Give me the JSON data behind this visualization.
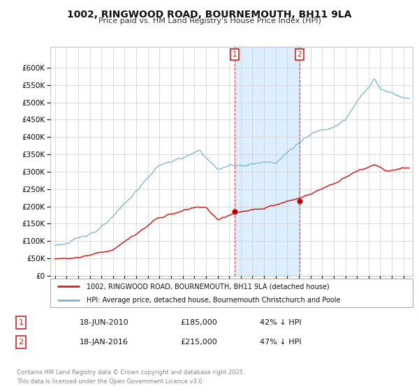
{
  "title_line1": "1002, RINGWOOD ROAD, BOURNEMOUTH, BH11 9LA",
  "title_line2": "Price paid vs. HM Land Registry's House Price Index (HPI)",
  "ylim": [
    0,
    660000
  ],
  "yticks": [
    0,
    50000,
    100000,
    150000,
    200000,
    250000,
    300000,
    350000,
    400000,
    450000,
    500000,
    550000,
    600000
  ],
  "ytick_labels": [
    "£0",
    "£50K",
    "£100K",
    "£150K",
    "£200K",
    "£250K",
    "£300K",
    "£350K",
    "£400K",
    "£450K",
    "£500K",
    "£550K",
    "£600K"
  ],
  "hpi_color": "#7ab3d4",
  "price_color": "#cc2222",
  "transaction1_date_label": "18-JUN-2010",
  "transaction1_price": 185000,
  "transaction1_note": "42% ↓ HPI",
  "transaction1_x": 2010.46,
  "transaction2_date_label": "18-JAN-2016",
  "transaction2_price": 215000,
  "transaction2_note": "47% ↓ HPI",
  "transaction2_x": 2016.05,
  "legend_label_price": "1002, RINGWOOD ROAD, BOURNEMOUTH, BH11 9LA (detached house)",
  "legend_label_hpi": "HPI: Average price, detached house, Bournemouth Christchurch and Poole",
  "footer": "Contains HM Land Registry data © Crown copyright and database right 2025.\nThis data is licensed under the Open Government Licence v3.0.",
  "background_color": "#ffffff",
  "grid_color": "#cccccc",
  "plot_bg": "#ffffff",
  "shade_color": "#ddeeff"
}
